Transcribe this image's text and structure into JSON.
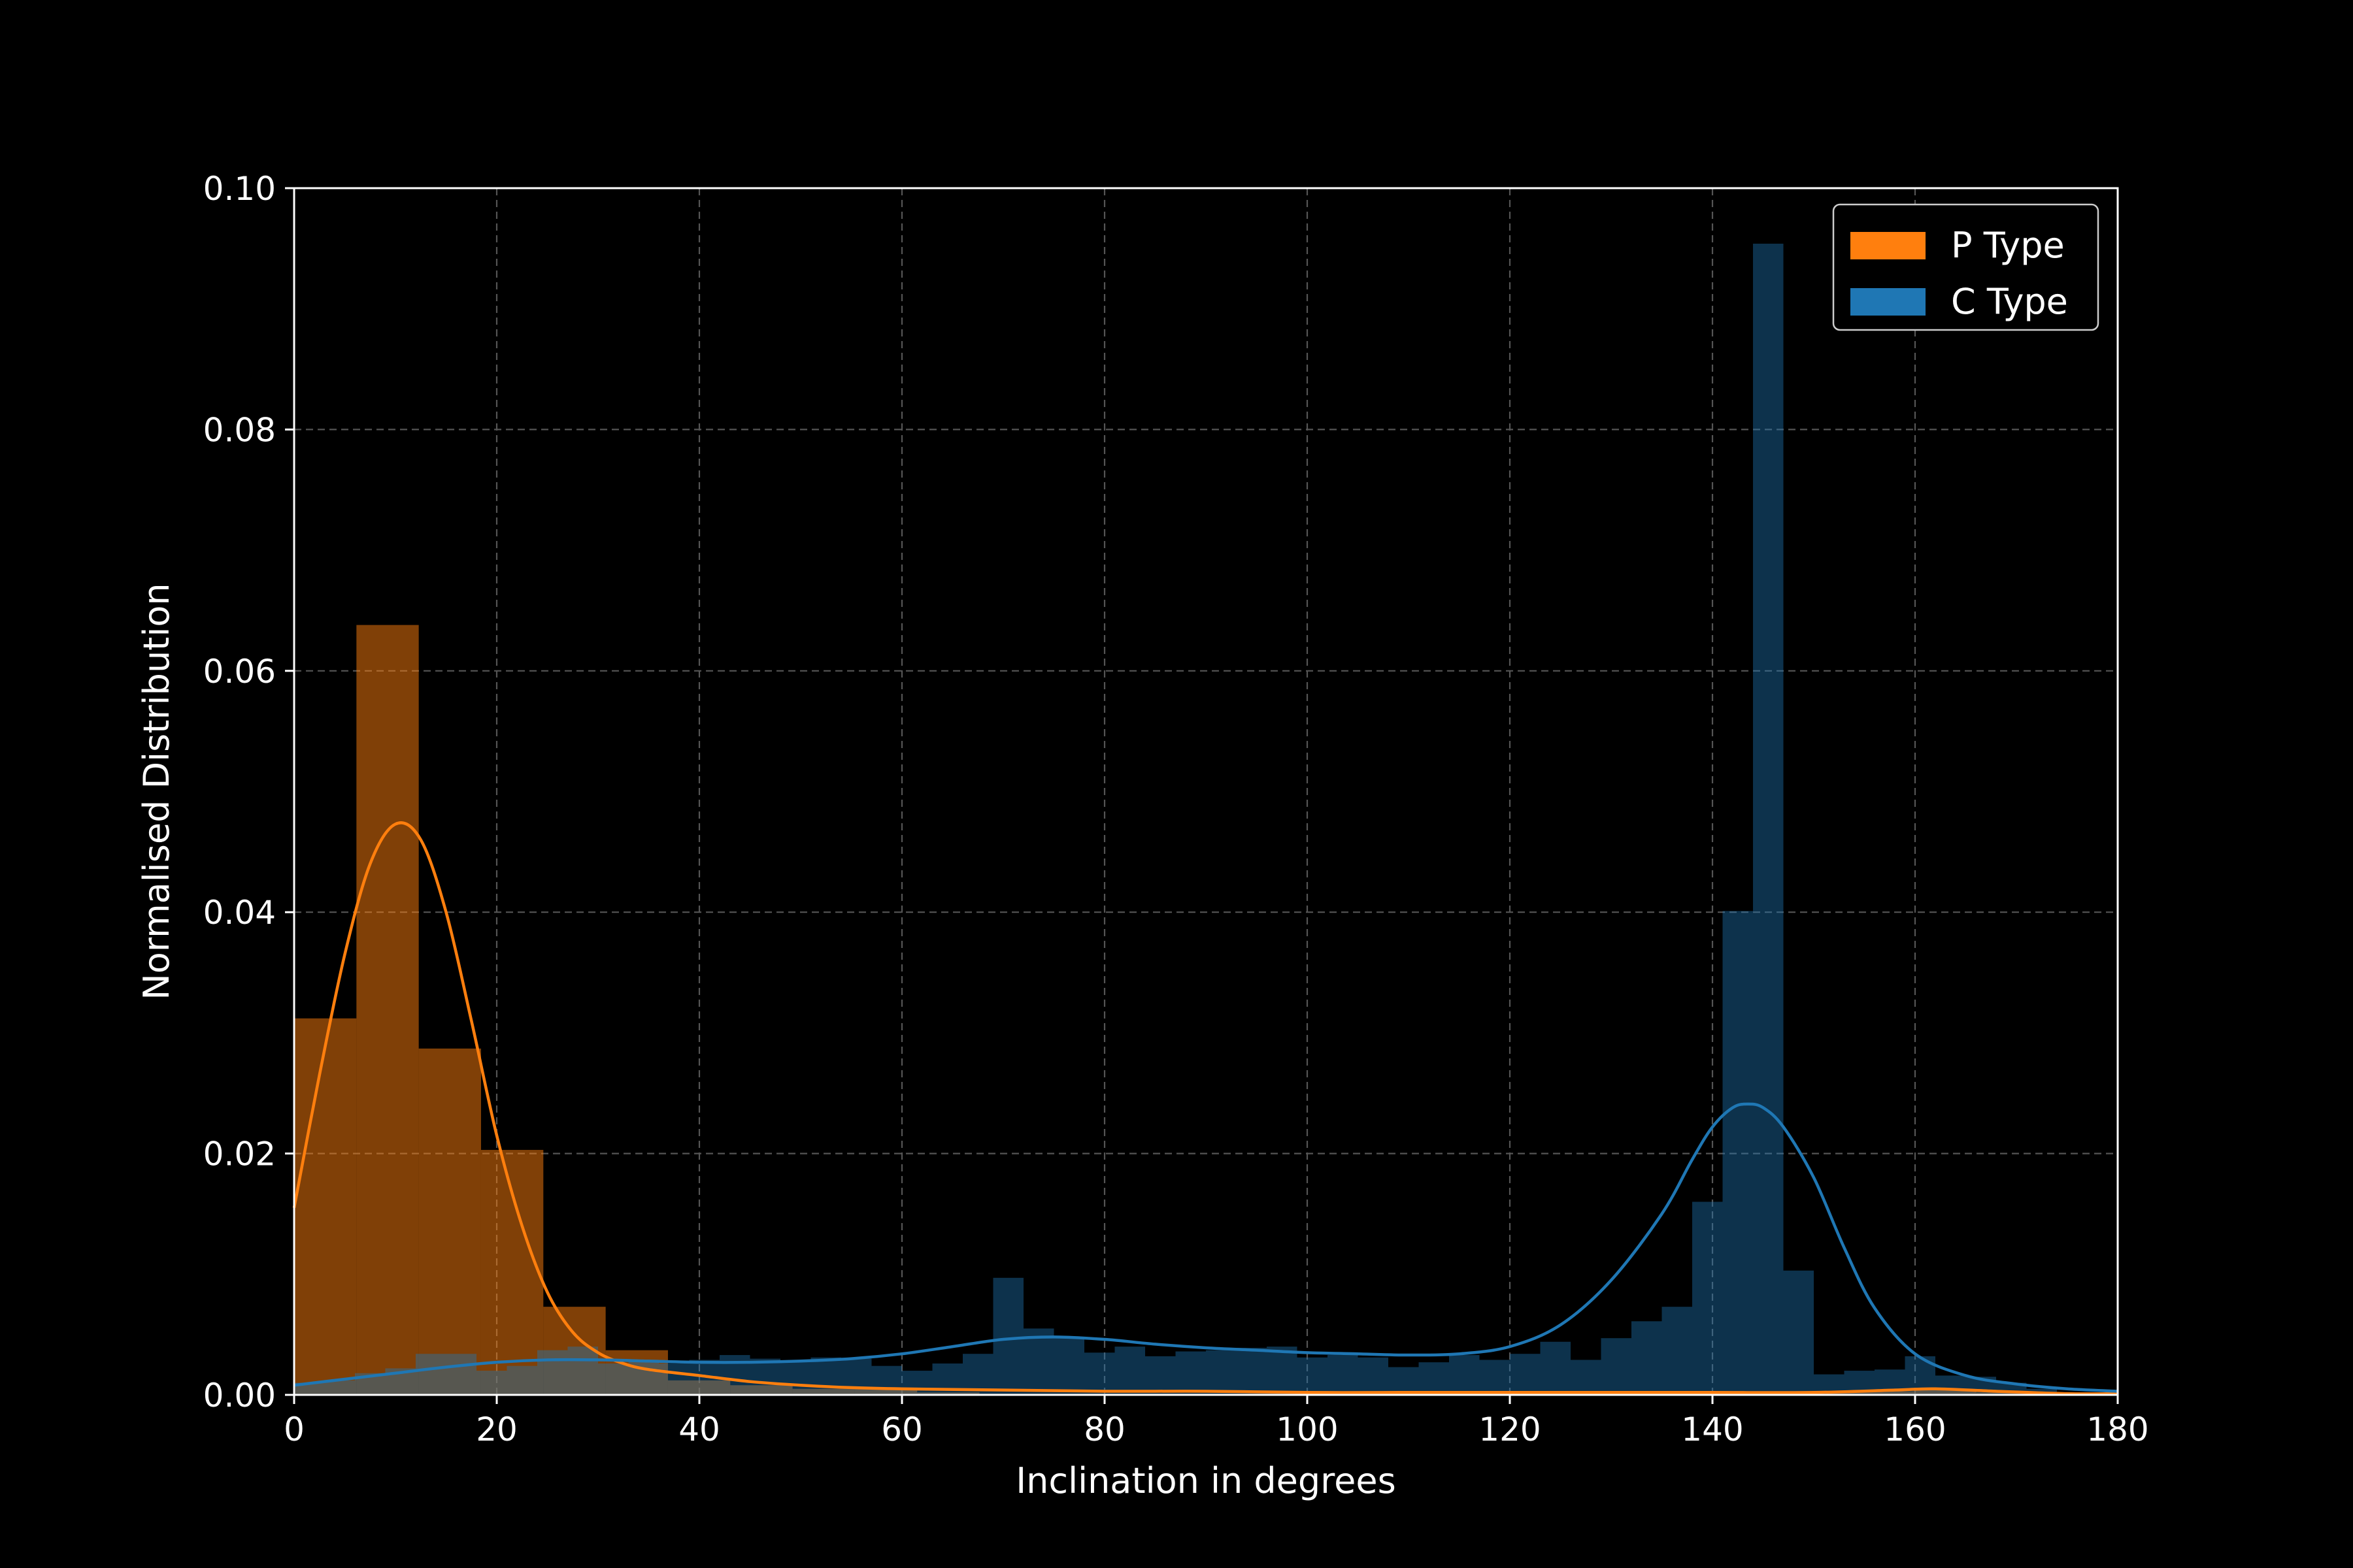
{
  "chart_data": {
    "type": "histogram",
    "xlabel": "Inclination in degrees",
    "ylabel": "Normalised Distribution",
    "xlim": [
      0,
      180
    ],
    "ylim": [
      0,
      0.1
    ],
    "xticks": [
      0,
      20,
      40,
      60,
      80,
      100,
      120,
      140,
      160,
      180
    ],
    "yticks": [
      "0.00",
      "0.02",
      "0.04",
      "0.06",
      "0.08",
      "0.10"
    ],
    "grid": true,
    "legend_position": "top-right",
    "background": "#000000",
    "series": [
      {
        "name": "P Type",
        "color": "#ff7f0e",
        "bin_width": 6.15,
        "bins": [
          [
            0,
            0.0312
          ],
          [
            6.15,
            0.0638
          ],
          [
            12.3,
            0.0287
          ],
          [
            18.45,
            0.0203
          ],
          [
            24.6,
            0.0073
          ],
          [
            30.75,
            0.0037
          ],
          [
            36.9,
            0.0012
          ],
          [
            43.05,
            0.0008
          ],
          [
            49.2,
            0.0005
          ],
          [
            55.35,
            0.0006
          ],
          [
            61.5,
            0.0002
          ],
          [
            67.65,
            0.0001
          ],
          [
            73.8,
            0.0001
          ],
          [
            79.95,
            0.0001
          ],
          [
            86.1,
            0.0001
          ],
          [
            92.25,
            0.0001
          ],
          [
            98.4,
            0.0001
          ],
          [
            104.55,
            0.0001
          ],
          [
            110.7,
            0.0001
          ],
          [
            116.85,
            0.0001
          ],
          [
            123.0,
            0.0001
          ],
          [
            129.15,
            0.0001
          ],
          [
            135.3,
            0.0001
          ],
          [
            141.45,
            0.0001
          ],
          [
            147.6,
            0.0002
          ],
          [
            153.75,
            0.0003
          ],
          [
            159.9,
            0.0004
          ],
          [
            166.05,
            0.0002
          ]
        ],
        "kde": [
          [
            0,
            0.0155
          ],
          [
            2.5,
            0.0265
          ],
          [
            5,
            0.0365
          ],
          [
            7.5,
            0.044
          ],
          [
            10,
            0.0473
          ],
          [
            12.5,
            0.046
          ],
          [
            15,
            0.04
          ],
          [
            17.5,
            0.031
          ],
          [
            20,
            0.0215
          ],
          [
            22.5,
            0.014
          ],
          [
            25,
            0.0085
          ],
          [
            27.5,
            0.0052
          ],
          [
            30,
            0.0035
          ],
          [
            32.5,
            0.0026
          ],
          [
            35,
            0.0021
          ],
          [
            40,
            0.0016
          ],
          [
            45,
            0.0011
          ],
          [
            50,
            0.0008
          ],
          [
            55,
            0.0006
          ],
          [
            60,
            0.0005
          ],
          [
            70,
            0.0004
          ],
          [
            80,
            0.0003
          ],
          [
            90,
            0.0003
          ],
          [
            100,
            0.0002
          ],
          [
            110,
            0.0002
          ],
          [
            120,
            0.0002
          ],
          [
            130,
            0.0002
          ],
          [
            140,
            0.0002
          ],
          [
            150,
            0.0002
          ],
          [
            158,
            0.0004
          ],
          [
            162,
            0.0005
          ],
          [
            168,
            0.0003
          ],
          [
            175,
            0.0001
          ],
          [
            180,
            0.0001
          ]
        ]
      },
      {
        "name": "C Type",
        "color": "#1f77b4",
        "bin_width": 3.0,
        "bins": [
          [
            0,
            0.001
          ],
          [
            3,
            0.0012
          ],
          [
            6,
            0.0018
          ],
          [
            9,
            0.0022
          ],
          [
            12,
            0.0034
          ],
          [
            15,
            0.0034
          ],
          [
            18,
            0.002
          ],
          [
            21,
            0.0024
          ],
          [
            24,
            0.0037
          ],
          [
            27,
            0.004
          ],
          [
            30,
            0.0026
          ],
          [
            33,
            0.0029
          ],
          [
            36,
            0.0026
          ],
          [
            39,
            0.0029
          ],
          [
            42,
            0.0033
          ],
          [
            45,
            0.003
          ],
          [
            48,
            0.0028
          ],
          [
            51,
            0.0031
          ],
          [
            54,
            0.003
          ],
          [
            57,
            0.0024
          ],
          [
            60,
            0.002
          ],
          [
            63,
            0.0026
          ],
          [
            66,
            0.0034
          ],
          [
            69,
            0.0097
          ],
          [
            72,
            0.0055
          ],
          [
            75,
            0.0047
          ],
          [
            78,
            0.0035
          ],
          [
            81,
            0.004
          ],
          [
            84,
            0.0032
          ],
          [
            87,
            0.0036
          ],
          [
            90,
            0.0037
          ],
          [
            93,
            0.0039
          ],
          [
            96,
            0.004
          ],
          [
            99,
            0.0031
          ],
          [
            102,
            0.0033
          ],
          [
            105,
            0.0031
          ],
          [
            108,
            0.0023
          ],
          [
            111,
            0.0027
          ],
          [
            114,
            0.0033
          ],
          [
            117,
            0.0029
          ],
          [
            120,
            0.0034
          ],
          [
            123,
            0.0044
          ],
          [
            126,
            0.0029
          ],
          [
            129,
            0.0047
          ],
          [
            132,
            0.0061
          ],
          [
            135,
            0.0073
          ],
          [
            138,
            0.016
          ],
          [
            141,
            0.0401
          ],
          [
            144,
            0.0954
          ],
          [
            147,
            0.0103
          ],
          [
            150,
            0.0017
          ],
          [
            153,
            0.002
          ],
          [
            156,
            0.0021
          ],
          [
            159,
            0.0032
          ],
          [
            162,
            0.0016
          ],
          [
            165,
            0.0015
          ],
          [
            168,
            0.001
          ],
          [
            171,
            0.0005
          ]
        ],
        "kde": [
          [
            0,
            0.0008
          ],
          [
            5,
            0.0013
          ],
          [
            10,
            0.0018
          ],
          [
            15,
            0.0023
          ],
          [
            20,
            0.0027
          ],
          [
            25,
            0.0029
          ],
          [
            30,
            0.0029
          ],
          [
            35,
            0.0028
          ],
          [
            40,
            0.0027
          ],
          [
            45,
            0.0027
          ],
          [
            50,
            0.0028
          ],
          [
            55,
            0.003
          ],
          [
            60,
            0.0034
          ],
          [
            65,
            0.004
          ],
          [
            70,
            0.0046
          ],
          [
            75,
            0.0048
          ],
          [
            80,
            0.0046
          ],
          [
            85,
            0.0042
          ],
          [
            90,
            0.0039
          ],
          [
            95,
            0.0037
          ],
          [
            100,
            0.0035
          ],
          [
            105,
            0.0034
          ],
          [
            110,
            0.0033
          ],
          [
            115,
            0.0034
          ],
          [
            120,
            0.004
          ],
          [
            125,
            0.0058
          ],
          [
            130,
            0.0095
          ],
          [
            135,
            0.015
          ],
          [
            138,
            0.0195
          ],
          [
            140,
            0.0222
          ],
          [
            142,
            0.0238
          ],
          [
            143.5,
            0.0241
          ],
          [
            145,
            0.0238
          ],
          [
            147,
            0.0222
          ],
          [
            150,
            0.018
          ],
          [
            153,
            0.0122
          ],
          [
            156,
            0.0072
          ],
          [
            160,
            0.0034
          ],
          [
            165,
            0.0016
          ],
          [
            170,
            0.0009
          ],
          [
            175,
            0.0005
          ],
          [
            180,
            0.0003
          ]
        ]
      }
    ]
  }
}
